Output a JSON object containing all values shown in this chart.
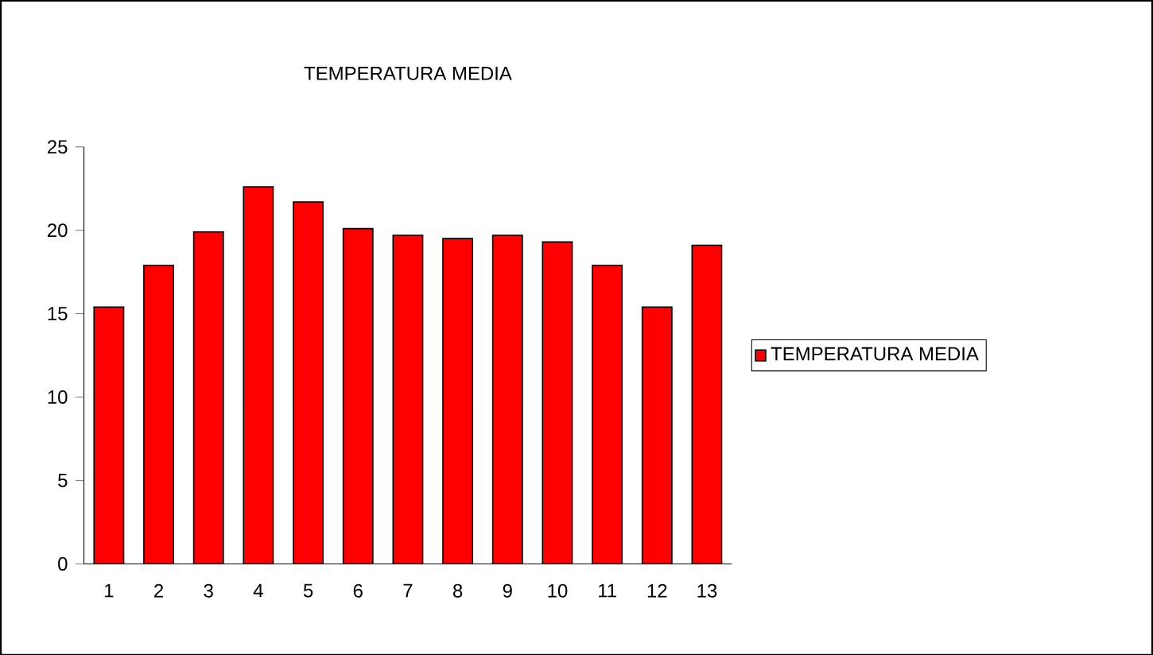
{
  "chart_data": {
    "type": "bar",
    "title": "TEMPERATURA MEDIA",
    "categories": [
      "1",
      "2",
      "3",
      "4",
      "5",
      "6",
      "7",
      "8",
      "9",
      "10",
      "11",
      "12",
      "13"
    ],
    "series": [
      {
        "name": "TEMPERATURA MEDIA",
        "color": "#ff0000",
        "values": [
          15.4,
          17.9,
          19.9,
          22.6,
          21.7,
          20.1,
          19.7,
          19.5,
          19.7,
          19.3,
          17.9,
          15.4,
          19.1
        ]
      }
    ],
    "ylim": [
      0,
      25
    ],
    "yticks": [
      0,
      5,
      10,
      15,
      20,
      25
    ],
    "grid": false,
    "legend": "right"
  }
}
